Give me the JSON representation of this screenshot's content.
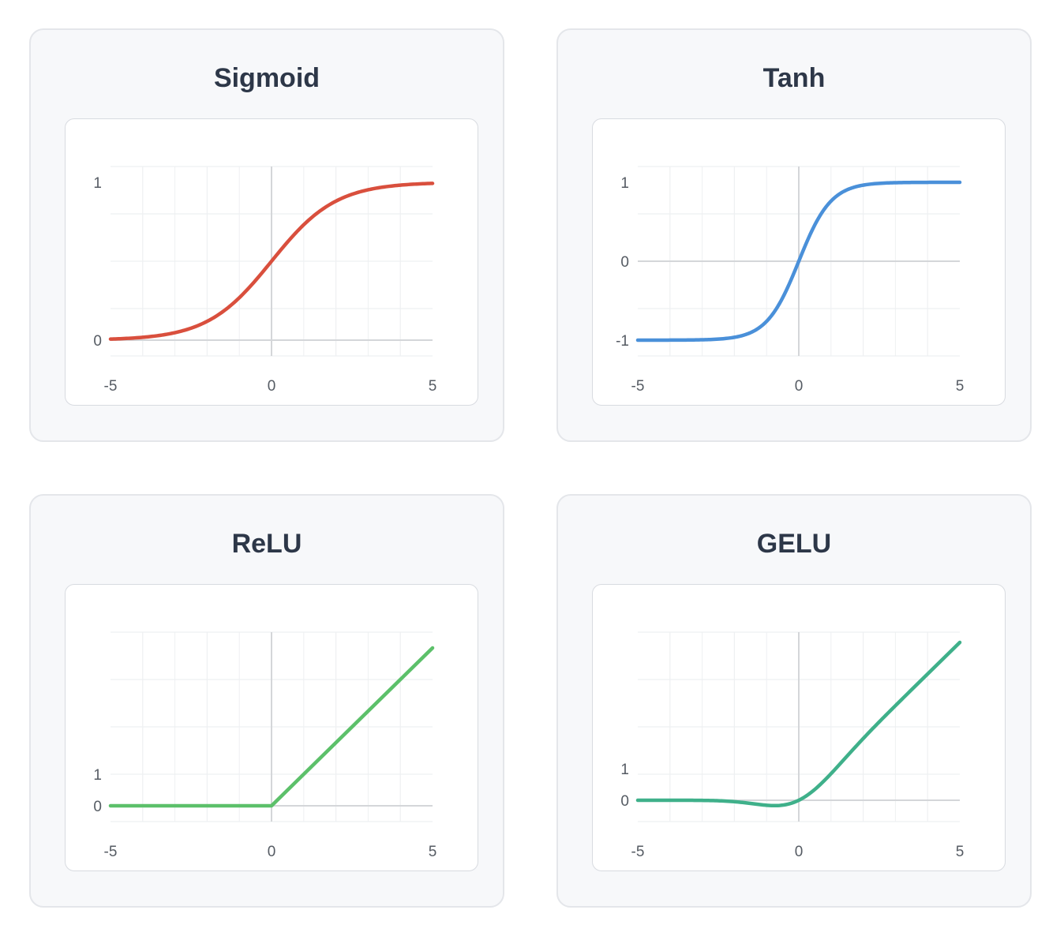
{
  "chart_data": [
    {
      "type": "line",
      "title": "Sigmoid",
      "color": "#d94f3d",
      "function": "sigmoid",
      "xlim": [
        -5,
        5
      ],
      "ylim": [
        0,
        1
      ],
      "x_ticks": [
        -5,
        0,
        5
      ],
      "y_ticks": [
        0,
        1
      ],
      "x": [
        -5,
        -4,
        -3,
        -2,
        -1,
        0,
        1,
        2,
        3,
        4,
        5
      ],
      "y": [
        0.007,
        0.018,
        0.047,
        0.119,
        0.269,
        0.5,
        0.731,
        0.881,
        0.953,
        0.982,
        0.993
      ],
      "grid": true
    },
    {
      "type": "line",
      "title": "Tanh",
      "color": "#4a90d9",
      "function": "tanh",
      "xlim": [
        -5,
        5
      ],
      "ylim": [
        -1,
        1
      ],
      "x_ticks": [
        -5,
        0,
        5
      ],
      "y_ticks": [
        -1,
        0,
        1
      ],
      "x": [
        -5,
        -4,
        -3,
        -2,
        -1,
        0,
        1,
        2,
        3,
        4,
        5
      ],
      "y": [
        -1.0,
        -0.999,
        -0.995,
        -0.964,
        -0.762,
        0,
        0.762,
        0.964,
        0.995,
        0.999,
        1.0
      ],
      "grid": true
    },
    {
      "type": "line",
      "title": "ReLU",
      "color": "#5cc06a",
      "function": "relu",
      "xlim": [
        -5,
        5
      ],
      "ylim": [
        0,
        5
      ],
      "x_ticks": [
        -5,
        0,
        5
      ],
      "y_ticks": [
        0,
        1
      ],
      "x": [
        -5,
        -4,
        -3,
        -2,
        -1,
        0,
        1,
        2,
        3,
        4,
        5
      ],
      "y": [
        0,
        0,
        0,
        0,
        0,
        0,
        1,
        2,
        3,
        4,
        5
      ],
      "grid": true
    },
    {
      "type": "line",
      "title": "GELU",
      "color": "#3fb08a",
      "function": "gelu",
      "xlim": [
        -5,
        5
      ],
      "ylim": [
        0,
        5
      ],
      "x_ticks": [
        -5,
        0,
        5
      ],
      "y_ticks": [
        0,
        1
      ],
      "x": [
        -5,
        -4,
        -3,
        -2,
        -1,
        0,
        1,
        2,
        3,
        4,
        5
      ],
      "y": [
        0,
        -0.0001,
        -0.004,
        -0.045,
        -0.159,
        0,
        0.841,
        1.955,
        2.996,
        4.0,
        5.0
      ],
      "grid": true
    }
  ]
}
